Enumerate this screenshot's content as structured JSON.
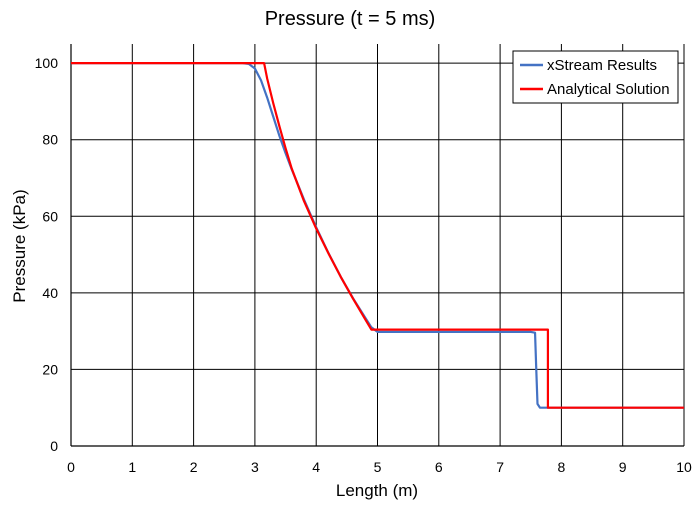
{
  "chart_data": {
    "type": "line",
    "title": "Pressure (t = 5 ms)",
    "xlabel": "Length (m)",
    "ylabel": "Pressure (kPa)",
    "xlim": [
      0,
      10
    ],
    "ylim": [
      0,
      105
    ],
    "xticks": [
      0,
      1,
      2,
      3,
      4,
      5,
      6,
      7,
      8,
      9,
      10
    ],
    "yticks": [
      0,
      20,
      40,
      60,
      80,
      100
    ],
    "xtick_labels": [
      "0",
      "1",
      "2",
      "3",
      "4",
      "5",
      "6",
      "7",
      "8",
      "9",
      "10"
    ],
    "ytick_labels": [
      "0",
      "20",
      "40",
      "60",
      "80",
      "100"
    ],
    "grid": true,
    "legend_position": "top-right",
    "series": [
      {
        "name": "xStream Results",
        "color": "#4472c4",
        "x": [
          0,
          2.8,
          2.9,
          3.0,
          3.1,
          3.2,
          3.3,
          3.4,
          3.5,
          3.6,
          3.8,
          4.0,
          4.2,
          4.4,
          4.6,
          4.8,
          4.9,
          5.0,
          5.5,
          6.0,
          6.5,
          7.0,
          7.5,
          7.57,
          7.59,
          7.61,
          7.65,
          7.7,
          8.0,
          9.0,
          10.0
        ],
        "y": [
          100,
          100,
          99.8,
          98.6,
          95.5,
          91.0,
          86.0,
          81.0,
          76.5,
          72.3,
          64.4,
          57.1,
          50.4,
          44.2,
          38.6,
          33.5,
          31.0,
          29.8,
          29.8,
          29.8,
          29.8,
          29.8,
          29.8,
          29.6,
          20.0,
          11.0,
          10.0,
          10.0,
          10.0,
          10.0,
          10.0
        ]
      },
      {
        "name": "Analytical Solution",
        "color": "#ff0000",
        "x": [
          0,
          3.15,
          3.2,
          3.3,
          3.4,
          3.5,
          3.6,
          3.8,
          4.0,
          4.2,
          4.4,
          4.6,
          4.8,
          4.9,
          5.0,
          6.0,
          7.0,
          7.78,
          7.78,
          8.0,
          9.0,
          10.0
        ],
        "y": [
          100,
          100,
          96.0,
          89.5,
          83.5,
          77.8,
          72.5,
          64.0,
          56.8,
          50.3,
          44.2,
          38.5,
          33.1,
          30.4,
          30.4,
          30.4,
          30.4,
          30.4,
          10.0,
          10.0,
          10.0,
          10.0
        ]
      }
    ]
  }
}
